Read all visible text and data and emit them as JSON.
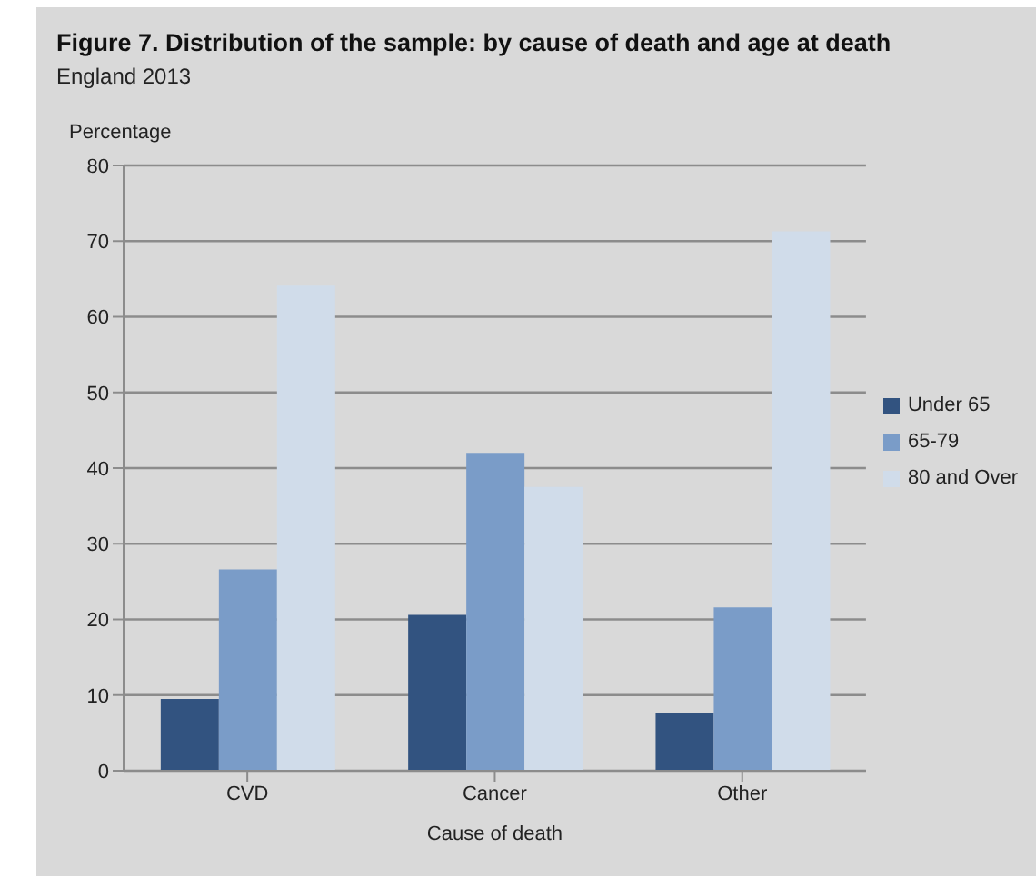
{
  "chart_data": {
    "type": "bar",
    "title": "Figure 7. Distribution of the sample: by cause of death and age at death",
    "subtitle": "England 2013",
    "xlabel": "Cause of death",
    "ylabel": "Percentage",
    "categories": [
      "CVD",
      "Cancer",
      "Other"
    ],
    "series": [
      {
        "name": "Under 65",
        "color": "#325380",
        "values": [
          9.5,
          20.6,
          7.7
        ]
      },
      {
        "name": "65-79",
        "color": "#7a9cc8",
        "values": [
          26.6,
          42,
          21.6
        ]
      },
      {
        "name": "80 and Over",
        "color": "#d0dcea",
        "values": [
          64.1,
          37.5,
          71.3
        ]
      }
    ],
    "ylim": [
      0,
      80
    ],
    "yticks": [
      0,
      10,
      20,
      30,
      40,
      50,
      60,
      70,
      80
    ],
    "grid": "y",
    "legend": "right"
  }
}
